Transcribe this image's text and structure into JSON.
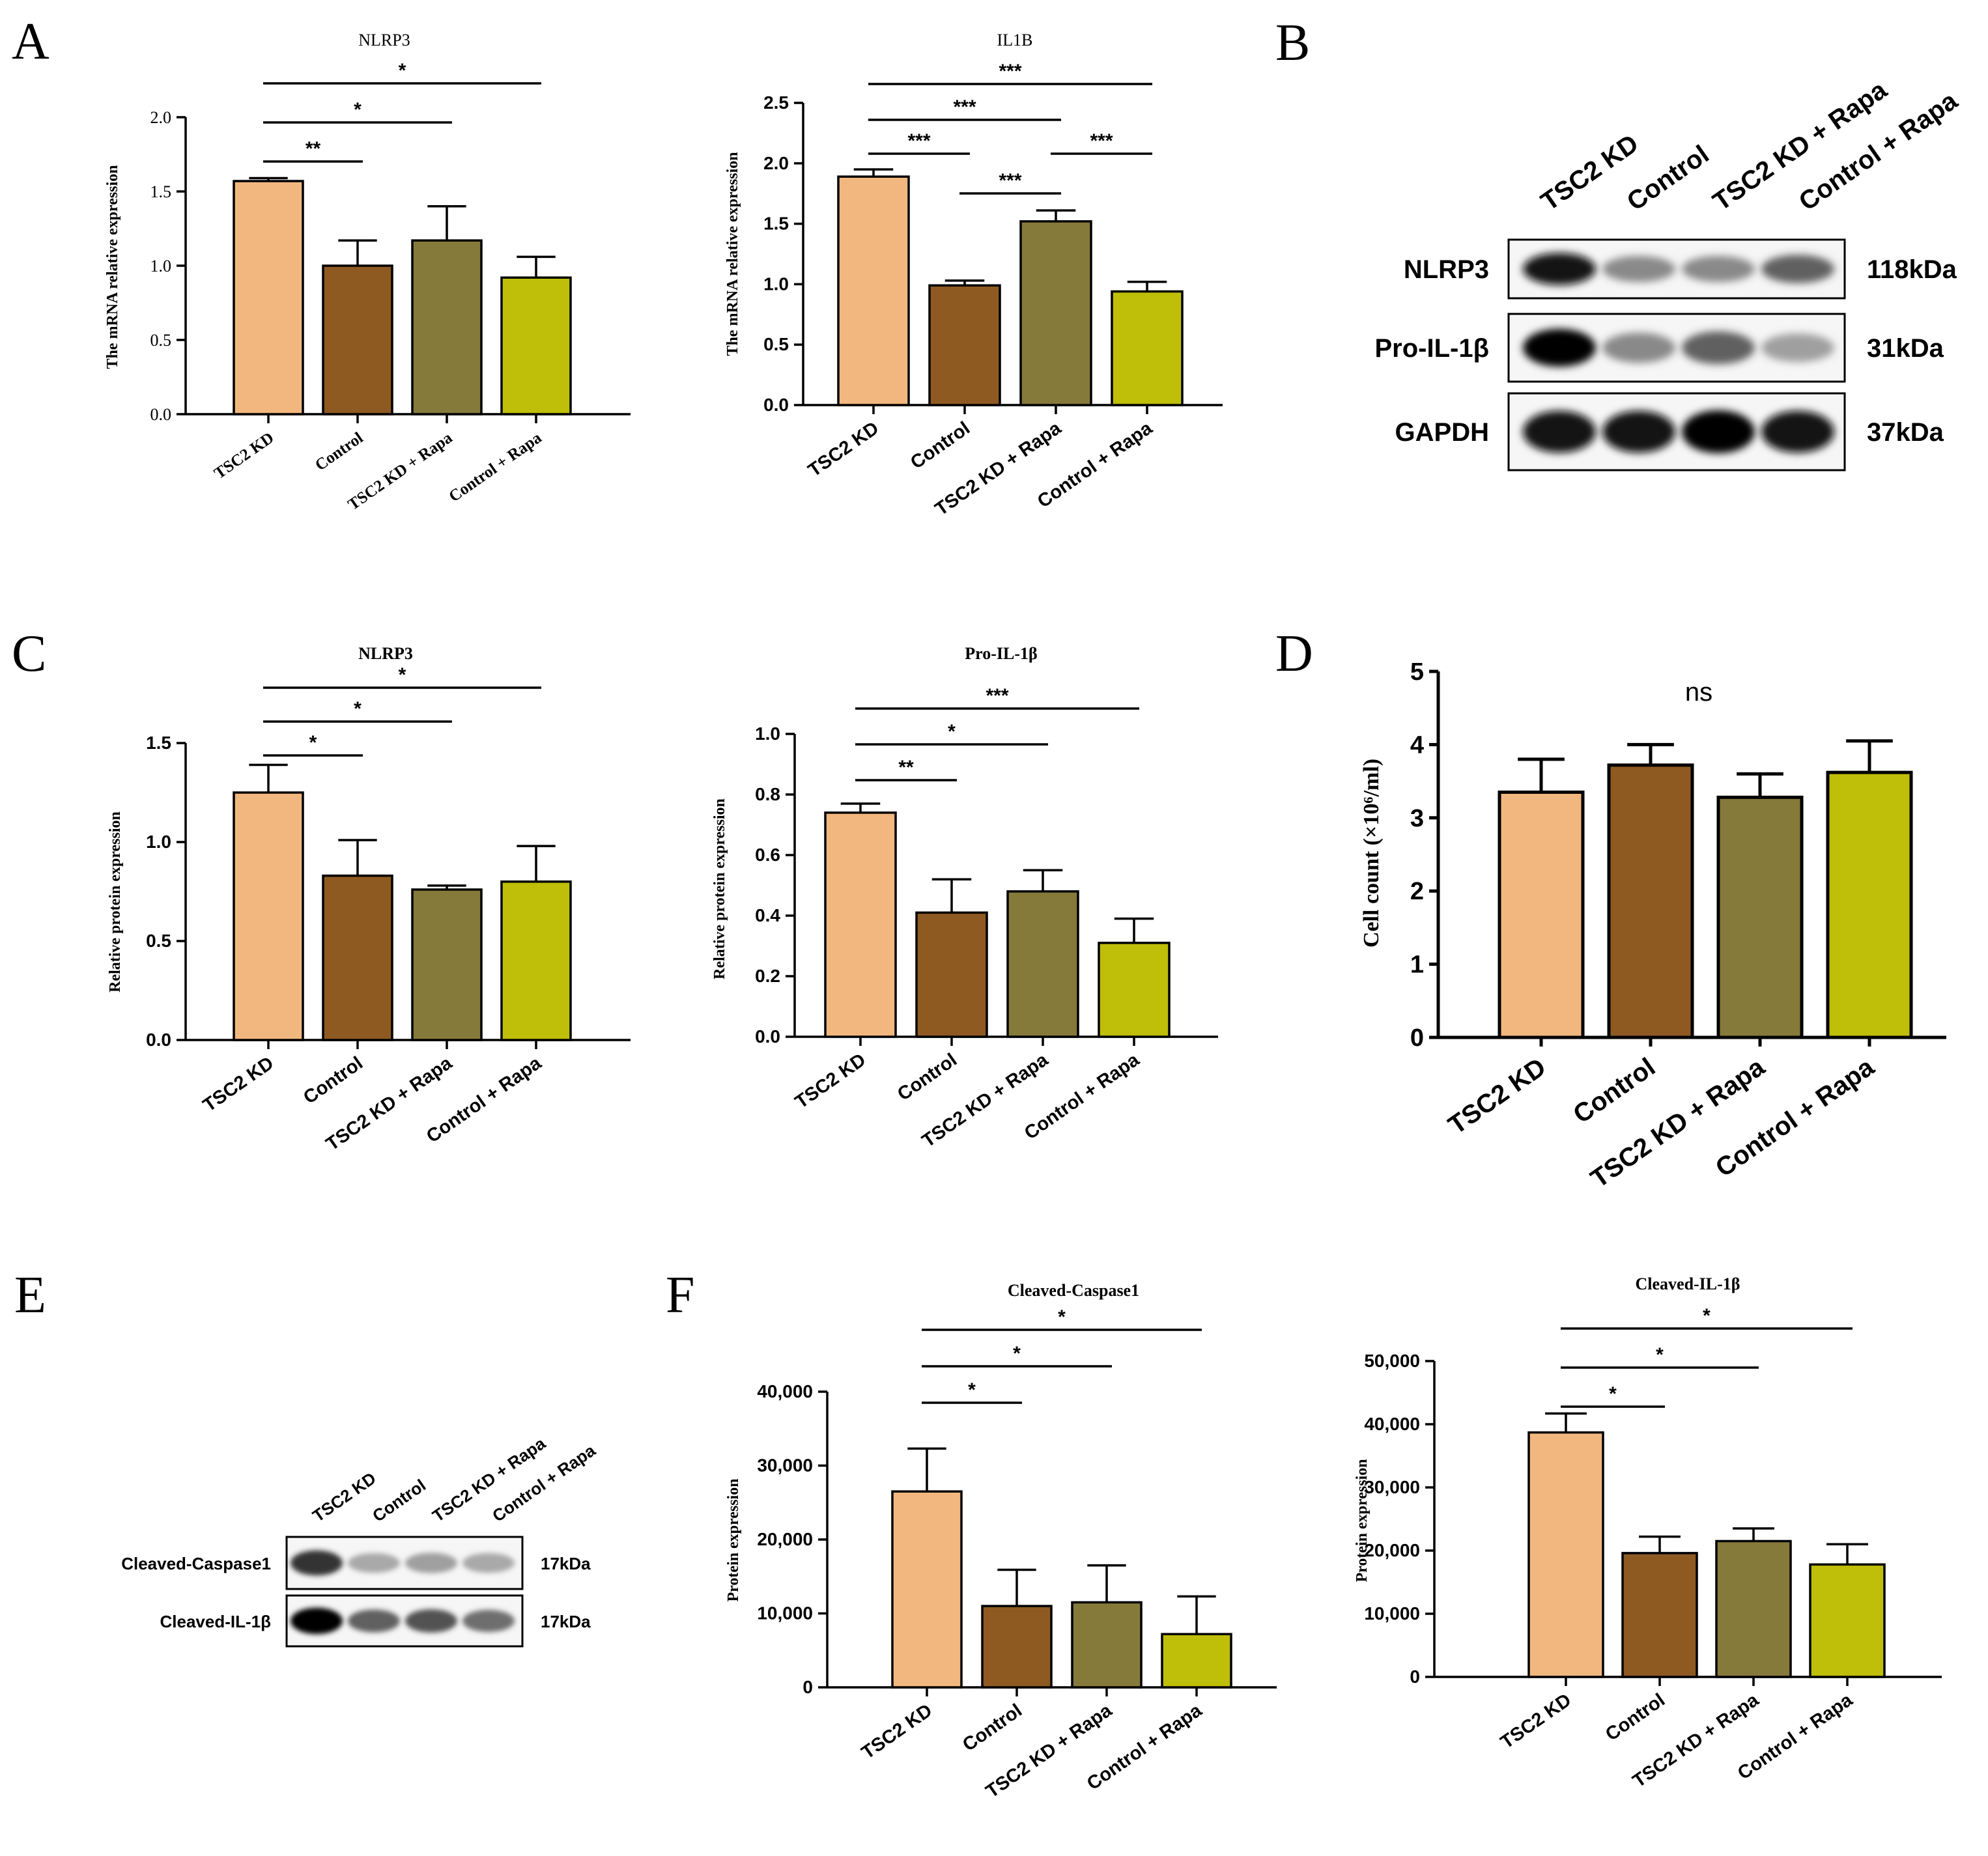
{
  "panel_labels": {
    "A": "A",
    "B": "B",
    "C": "C",
    "D": "D",
    "E": "E",
    "F": "F"
  },
  "colors": {
    "tsc2kd": "#F2B77E",
    "control": "#8E5A22",
    "tsc2kd_rapa": "#857A3A",
    "control_rapa": "#BFBE08"
  },
  "chart_data": [
    {
      "id": "A1",
      "type": "bar",
      "title": "NLRP3",
      "ylabel": "The mRNA relative  expression",
      "ylim": [
        0,
        2.0
      ],
      "ticks": [
        0.0,
        0.5,
        1.0,
        1.5,
        2.0
      ],
      "tick_labels": [
        "0.0",
        "0.5",
        "1.0",
        "1.5",
        "2.0"
      ],
      "categories": [
        "TSC2 KD",
        "Control",
        "TSC2 KD + Rapa",
        "Control + Rapa"
      ],
      "values": [
        1.57,
        1.0,
        1.17,
        0.92
      ],
      "errors": [
        0.02,
        0.17,
        0.23,
        0.14
      ],
      "significance": [
        {
          "from": 0,
          "to": 1,
          "label": "**"
        },
        {
          "from": 0,
          "to": 2,
          "label": "*"
        },
        {
          "from": 0,
          "to": 3,
          "label": "*"
        }
      ]
    },
    {
      "id": "A2",
      "type": "bar",
      "title": "IL1B",
      "ylabel": "The mRNA relative  expression",
      "ylim": [
        0,
        2.5
      ],
      "ticks": [
        0.0,
        0.5,
        1.0,
        1.5,
        2.0,
        2.5
      ],
      "tick_labels": [
        "0.0",
        "0.5",
        "1.0",
        "1.5",
        "2.0",
        "2.5"
      ],
      "categories": [
        "TSC2 KD",
        "Control",
        "TSC2 KD + Rapa",
        "Control + Rapa"
      ],
      "values": [
        1.89,
        0.99,
        1.52,
        0.94
      ],
      "errors": [
        0.06,
        0.04,
        0.09,
        0.08
      ],
      "significance": [
        {
          "from": 0,
          "to": 1,
          "label": "***"
        },
        {
          "from": 1,
          "to": 2,
          "label": "***"
        },
        {
          "from": 2,
          "to": 3,
          "label": "***"
        },
        {
          "from": 0,
          "to": 2,
          "label": "***"
        },
        {
          "from": 0,
          "to": 3,
          "label": "***"
        }
      ]
    },
    {
      "id": "C1",
      "type": "bar",
      "title": "NLRP3",
      "ylabel": "Relative protein expression",
      "ylim": [
        0,
        1.5
      ],
      "ticks": [
        0.0,
        0.5,
        1.0,
        1.5
      ],
      "tick_labels": [
        "0.0",
        "0.5",
        "1.0",
        "1.5"
      ],
      "categories": [
        "TSC2 KD",
        "Control",
        "TSC2 KD + Rapa",
        "Control + Rapa"
      ],
      "values": [
        1.25,
        0.83,
        0.76,
        0.8
      ],
      "errors": [
        0.14,
        0.18,
        0.02,
        0.18
      ],
      "significance": [
        {
          "from": 0,
          "to": 1,
          "label": "*"
        },
        {
          "from": 0,
          "to": 2,
          "label": "*"
        },
        {
          "from": 0,
          "to": 3,
          "label": "*"
        }
      ]
    },
    {
      "id": "C2",
      "type": "bar",
      "title": "Pro-IL-1β",
      "ylabel": "Relative protein expression",
      "ylim": [
        0,
        1.0
      ],
      "ticks": [
        0.0,
        0.2,
        0.4,
        0.6,
        0.8,
        1.0
      ],
      "tick_labels": [
        "0.0",
        "0.2",
        "0.4",
        "0.6",
        "0.8",
        "1.0"
      ],
      "categories": [
        "TSC2 KD",
        "Control",
        "TSC2 KD + Rapa",
        "Control + Rapa"
      ],
      "values": [
        0.74,
        0.41,
        0.48,
        0.31
      ],
      "errors": [
        0.03,
        0.11,
        0.07,
        0.08
      ],
      "significance": [
        {
          "from": 0,
          "to": 1,
          "label": "**"
        },
        {
          "from": 0,
          "to": 2,
          "label": "*"
        },
        {
          "from": 0,
          "to": 3,
          "label": "***"
        }
      ]
    },
    {
      "id": "D",
      "type": "bar",
      "title": "",
      "ylabel": "Cell count (×10⁶/ml)",
      "ylim": [
        0,
        5
      ],
      "ticks": [
        0,
        1,
        2,
        3,
        4,
        5
      ],
      "tick_labels": [
        "0",
        "1",
        "2",
        "3",
        "4",
        "5"
      ],
      "categories": [
        "TSC2 KD",
        "Control",
        "TSC2 KD + Rapa",
        "Control + Rapa"
      ],
      "values": [
        3.35,
        3.72,
        3.28,
        3.62
      ],
      "errors": [
        0.45,
        0.28,
        0.32,
        0.43
      ],
      "annotation": "ns"
    },
    {
      "id": "F1",
      "type": "bar",
      "title": "Cleaved-Caspase1",
      "ylabel": "Protein expression",
      "ylim": [
        0,
        40000
      ],
      "ticks": [
        0,
        10000,
        20000,
        30000,
        40000
      ],
      "tick_labels": [
        "0",
        "10,000",
        "20,000",
        "30,000",
        "40,000"
      ],
      "categories": [
        "TSC2 KD",
        "Control",
        "TSC2 KD + Rapa",
        "Control + Rapa"
      ],
      "values": [
        26500,
        11000,
        11500,
        7200
      ],
      "errors": [
        5800,
        4900,
        5000,
        5100
      ],
      "significance": [
        {
          "from": 0,
          "to": 1,
          "label": "*"
        },
        {
          "from": 0,
          "to": 2,
          "label": "*"
        },
        {
          "from": 0,
          "to": 3,
          "label": "*"
        }
      ]
    },
    {
      "id": "F2",
      "type": "bar",
      "title": "Cleaved-IL-1β",
      "ylabel": "Protein expression",
      "ylim": [
        0,
        50000
      ],
      "ticks": [
        0,
        10000,
        20000,
        30000,
        40000,
        50000
      ],
      "tick_labels": [
        "0",
        "10,000",
        "20,000",
        "30,000",
        "40,000",
        "50,000"
      ],
      "categories": [
        "TSC2 KD",
        "Control",
        "TSC2 KD + Rapa",
        "Control + Rapa"
      ],
      "values": [
        38700,
        19600,
        21500,
        17800
      ],
      "errors": [
        3000,
        2600,
        2000,
        3200
      ],
      "significance": [
        {
          "from": 0,
          "to": 1,
          "label": "*"
        },
        {
          "from": 0,
          "to": 2,
          "label": "*"
        },
        {
          "from": 0,
          "to": 3,
          "label": "*"
        }
      ]
    }
  ],
  "blot_B": {
    "lanes": [
      "TSC2 KD",
      "Control",
      "TSC2 KD + Rapa",
      "Control + Rapa"
    ],
    "rows": [
      {
        "label": "NLRP3",
        "kda": "118kDa",
        "intensity": [
          0.95,
          0.55,
          0.55,
          0.7
        ]
      },
      {
        "label": "Pro-IL-1β",
        "kda": "31kDa",
        "intensity": [
          1.0,
          0.55,
          0.7,
          0.45
        ]
      },
      {
        "label": "GAPDH",
        "kda": "37kDa",
        "intensity": [
          0.95,
          0.95,
          1.0,
          0.95
        ]
      }
    ]
  },
  "blot_E": {
    "lanes": [
      "TSC2 KD",
      "Control",
      "TSC2 KD + Rapa",
      "Control + Rapa"
    ],
    "rows": [
      {
        "label": "Cleaved-Caspase1",
        "kda": "17kDa",
        "intensity": [
          0.85,
          0.4,
          0.45,
          0.4
        ]
      },
      {
        "label": "Cleaved-IL-1β",
        "kda": "17kDa",
        "intensity": [
          1.0,
          0.7,
          0.75,
          0.65
        ]
      }
    ]
  }
}
